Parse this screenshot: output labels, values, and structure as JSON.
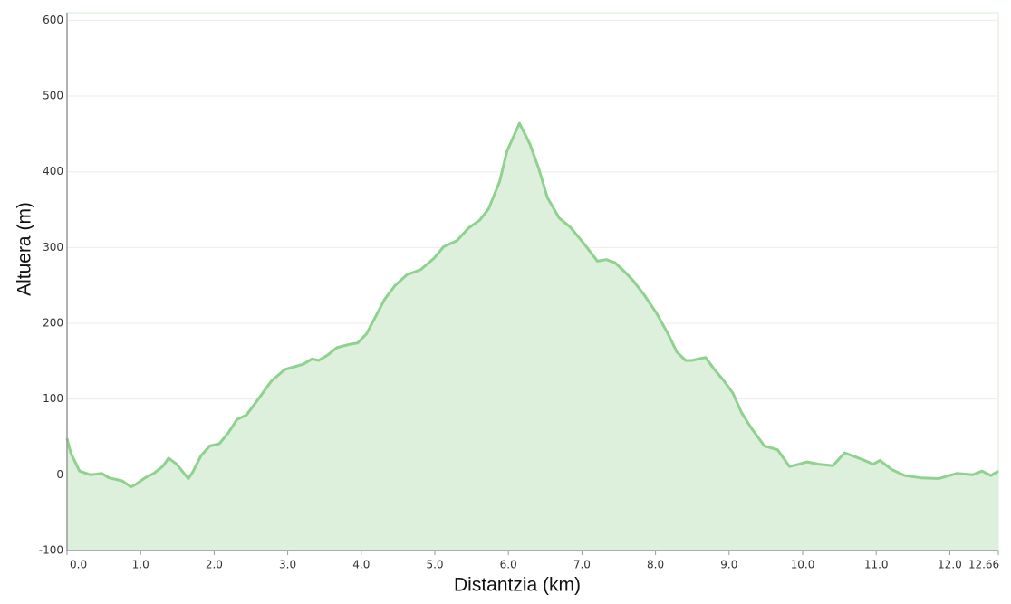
{
  "chart_data": {
    "type": "area",
    "x_label": "Distantzia (km)",
    "y_label": "Altuera (m)",
    "color": "#8fd18f",
    "fill": "#dcf0dc",
    "xlim": [
      0,
      12.66
    ],
    "xticks": [
      {
        "value": 0,
        "label": "0.0"
      },
      {
        "value": 1,
        "label": "1.0"
      },
      {
        "value": 2,
        "label": "2.0"
      },
      {
        "value": 3,
        "label": "3.0"
      },
      {
        "value": 4,
        "label": "4.0"
      },
      {
        "value": 5,
        "label": "5.0"
      },
      {
        "value": 6,
        "label": "6.0"
      },
      {
        "value": 7,
        "label": "7.0"
      },
      {
        "value": 8,
        "label": "8.0"
      },
      {
        "value": 9,
        "label": "9.0"
      },
      {
        "value": 10,
        "label": "10.0"
      },
      {
        "value": 11,
        "label": "11.0"
      },
      {
        "value": 12,
        "label": "12.0"
      },
      12.66
    ],
    "ylim": [
      -100,
      610
    ],
    "yticks": [
      -100,
      0,
      100,
      200,
      300,
      400,
      500,
      600
    ],
    "grid": true,
    "x": [
      0,
      0.05,
      0.17,
      0.32,
      0.47,
      0.57,
      0.75,
      0.87,
      0.93,
      1.06,
      1.18,
      1.3,
      1.38,
      1.49,
      1.59,
      1.65,
      1.71,
      1.82,
      1.94,
      2.07,
      2.19,
      2.31,
      2.44,
      2.6,
      2.78,
      2.96,
      3.21,
      3.33,
      3.42,
      3.54,
      3.67,
      3.83,
      3.95,
      4.07,
      4.19,
      4.32,
      4.46,
      4.62,
      4.81,
      4.99,
      5.12,
      5.3,
      5.46,
      5.61,
      5.73,
      5.88,
      5.98,
      6.15,
      6.29,
      6.41,
      6.53,
      6.69,
      6.84,
      7.02,
      7.21,
      7.33,
      7.45,
      7.58,
      7.7,
      7.85,
      8.01,
      8.17,
      8.29,
      8.41,
      8.5,
      8.58,
      8.68,
      8.8,
      8.93,
      9.05,
      9.17,
      9.3,
      9.48,
      9.66,
      9.82,
      9.91,
      10.06,
      10.22,
      10.41,
      10.57,
      10.71,
      10.84,
      10.96,
      11.05,
      11.21,
      11.39,
      11.61,
      11.85,
      12.1,
      12.31,
      12.44,
      12.56,
      12.66
    ],
    "values": [
      48,
      29,
      5,
      0,
      2,
      -4,
      -8,
      -16,
      -13,
      -4,
      2,
      11,
      22,
      14,
      2,
      -5,
      4,
      25,
      38,
      41,
      55,
      73,
      79,
      100,
      124,
      139,
      146,
      153,
      151,
      158,
      168,
      172,
      174,
      186,
      208,
      232,
      250,
      264,
      271,
      286,
      301,
      309,
      326,
      336,
      351,
      387,
      427,
      464,
      437,
      405,
      366,
      339,
      327,
      306,
      282,
      284,
      280,
      268,
      256,
      237,
      214,
      186,
      162,
      151,
      151,
      153,
      155,
      139,
      124,
      108,
      82,
      62,
      38,
      33,
      11,
      13,
      17,
      14,
      12,
      29,
      24,
      19,
      14,
      19,
      7,
      -1,
      -4,
      -5,
      2,
      0,
      5,
      -1,
      5
    ]
  }
}
